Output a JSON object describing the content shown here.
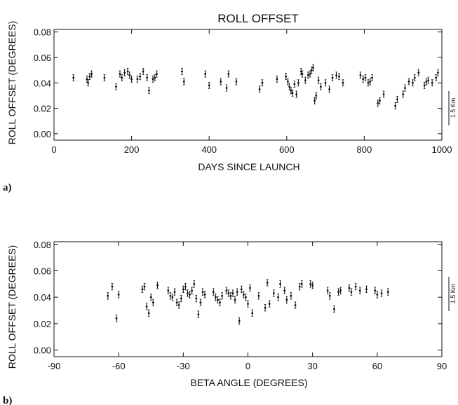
{
  "chart_data": [
    {
      "type": "scatter",
      "panel_label": "a)",
      "title": "ROLL OFFSET",
      "xlabel": "DAYS SINCE LAUNCH",
      "ylabel": "ROLL OFFSET (DEGREES)",
      "xlim": [
        0,
        1000
      ],
      "ylim": [
        -0.005,
        0.082
      ],
      "xticks": [
        "0",
        "200",
        "400",
        "600",
        "800",
        "1000"
      ],
      "yticks": [
        "0.00",
        "0.02",
        "0.04",
        "0.06",
        "0.08"
      ],
      "scale_bar_label": "1.5 Km",
      "error_bars": true,
      "grid": false,
      "series": [
        {
          "points": [
            [
              50,
              0.044
            ],
            [
              85,
              0.043
            ],
            [
              88,
              0.04
            ],
            [
              92,
              0.045
            ],
            [
              97,
              0.047
            ],
            [
              130,
              0.044
            ],
            [
              160,
              0.037
            ],
            [
              170,
              0.047
            ],
            [
              175,
              0.044
            ],
            [
              182,
              0.048
            ],
            [
              190,
              0.049
            ],
            [
              195,
              0.046
            ],
            [
              200,
              0.043
            ],
            [
              215,
              0.043
            ],
            [
              222,
              0.045
            ],
            [
              230,
              0.049
            ],
            [
              240,
              0.044
            ],
            [
              245,
              0.034
            ],
            [
              255,
              0.043
            ],
            [
              260,
              0.044
            ],
            [
              265,
              0.047
            ],
            [
              330,
              0.049
            ],
            [
              335,
              0.041
            ],
            [
              390,
              0.047
            ],
            [
              400,
              0.038
            ],
            [
              430,
              0.041
            ],
            [
              445,
              0.036
            ],
            [
              450,
              0.047
            ],
            [
              470,
              0.041
            ],
            [
              530,
              0.035
            ],
            [
              537,
              0.04
            ],
            [
              575,
              0.043
            ],
            [
              598,
              0.045
            ],
            [
              603,
              0.041
            ],
            [
              607,
              0.037
            ],
            [
              611,
              0.034
            ],
            [
              615,
              0.032
            ],
            [
              620,
              0.039
            ],
            [
              625,
              0.031
            ],
            [
              630,
              0.04
            ],
            [
              637,
              0.049
            ],
            [
              640,
              0.047
            ],
            [
              648,
              0.042
            ],
            [
              655,
              0.046
            ],
            [
              660,
              0.047
            ],
            [
              664,
              0.05
            ],
            [
              668,
              0.052
            ],
            [
              672,
              0.026
            ],
            [
              676,
              0.03
            ],
            [
              682,
              0.042
            ],
            [
              688,
              0.037
            ],
            [
              700,
              0.04
            ],
            [
              710,
              0.035
            ],
            [
              718,
              0.044
            ],
            [
              728,
              0.046
            ],
            [
              735,
              0.045
            ],
            [
              745,
              0.04
            ],
            [
              790,
              0.046
            ],
            [
              797,
              0.043
            ],
            [
              803,
              0.044
            ],
            [
              810,
              0.04
            ],
            [
              815,
              0.041
            ],
            [
              820,
              0.044
            ],
            [
              835,
              0.024
            ],
            [
              840,
              0.026
            ],
            [
              850,
              0.031
            ],
            [
              880,
              0.022
            ],
            [
              885,
              0.027
            ],
            [
              900,
              0.031
            ],
            [
              905,
              0.036
            ],
            [
              915,
              0.041
            ],
            [
              925,
              0.04
            ],
            [
              930,
              0.044
            ],
            [
              940,
              0.048
            ],
            [
              955,
              0.038
            ],
            [
              960,
              0.041
            ],
            [
              965,
              0.042
            ],
            [
              975,
              0.04
            ],
            [
              985,
              0.044
            ],
            [
              990,
              0.048
            ]
          ]
        }
      ]
    },
    {
      "type": "scatter",
      "panel_label": "b)",
      "title": "",
      "xlabel": "BETA ANGLE (DEGREES)",
      "ylabel": "ROLL OFFSET (DEGREES)",
      "xlim": [
        -90,
        90
      ],
      "ylim": [
        -0.005,
        0.082
      ],
      "xticks": [
        "-90",
        "-60",
        "-30",
        "0",
        "30",
        "60",
        "90"
      ],
      "yticks": [
        "0.00",
        "0.02",
        "0.04",
        "0.06",
        "0.08"
      ],
      "scale_bar_label": "1.5 Km",
      "error_bars": true,
      "grid": false,
      "series": [
        {
          "points": [
            [
              -65,
              0.041
            ],
            [
              -63,
              0.048
            ],
            [
              -61,
              0.024
            ],
            [
              -60,
              0.042
            ],
            [
              -49,
              0.046
            ],
            [
              -48,
              0.048
            ],
            [
              -47,
              0.033
            ],
            [
              -46,
              0.028
            ],
            [
              -45,
              0.04
            ],
            [
              -44,
              0.036
            ],
            [
              -42,
              0.049
            ],
            [
              -37,
              0.045
            ],
            [
              -36,
              0.041
            ],
            [
              -35,
              0.04
            ],
            [
              -34,
              0.044
            ],
            [
              -33,
              0.036
            ],
            [
              -32,
              0.034
            ],
            [
              -31,
              0.039
            ],
            [
              -30,
              0.046
            ],
            [
              -29,
              0.048
            ],
            [
              -28,
              0.043
            ],
            [
              -27,
              0.042
            ],
            [
              -26,
              0.045
            ],
            [
              -25,
              0.05
            ],
            [
              -24,
              0.039
            ],
            [
              -23,
              0.027
            ],
            [
              -22,
              0.036
            ],
            [
              -21,
              0.044
            ],
            [
              -20,
              0.042
            ],
            [
              -16,
              0.044
            ],
            [
              -15,
              0.04
            ],
            [
              -14,
              0.038
            ],
            [
              -13,
              0.036
            ],
            [
              -12,
              0.041
            ],
            [
              -10,
              0.045
            ],
            [
              -9,
              0.043
            ],
            [
              -8,
              0.041
            ],
            [
              -7,
              0.043
            ],
            [
              -6,
              0.038
            ],
            [
              -5,
              0.044
            ],
            [
              -4,
              0.022
            ],
            [
              -3,
              0.046
            ],
            [
              -2,
              0.042
            ],
            [
              -1,
              0.04
            ],
            [
              0,
              0.035
            ],
            [
              1,
              0.047
            ],
            [
              2,
              0.028
            ],
            [
              5,
              0.041
            ],
            [
              8,
              0.032
            ],
            [
              9,
              0.051
            ],
            [
              10,
              0.035
            ],
            [
              12,
              0.043
            ],
            [
              14,
              0.04
            ],
            [
              15,
              0.05
            ],
            [
              17,
              0.045
            ],
            [
              18,
              0.038
            ],
            [
              20,
              0.041
            ],
            [
              22,
              0.034
            ],
            [
              24,
              0.048
            ],
            [
              25,
              0.05
            ],
            [
              29,
              0.05
            ],
            [
              30,
              0.049
            ],
            [
              37,
              0.045
            ],
            [
              38,
              0.041
            ],
            [
              40,
              0.031
            ],
            [
              42,
              0.044
            ],
            [
              43,
              0.045
            ],
            [
              47,
              0.047
            ],
            [
              48,
              0.044
            ],
            [
              50,
              0.048
            ],
            [
              52,
              0.045
            ],
            [
              55,
              0.046
            ],
            [
              59,
              0.045
            ],
            [
              60,
              0.042
            ],
            [
              62,
              0.043
            ],
            [
              65,
              0.044
            ]
          ]
        }
      ]
    }
  ]
}
